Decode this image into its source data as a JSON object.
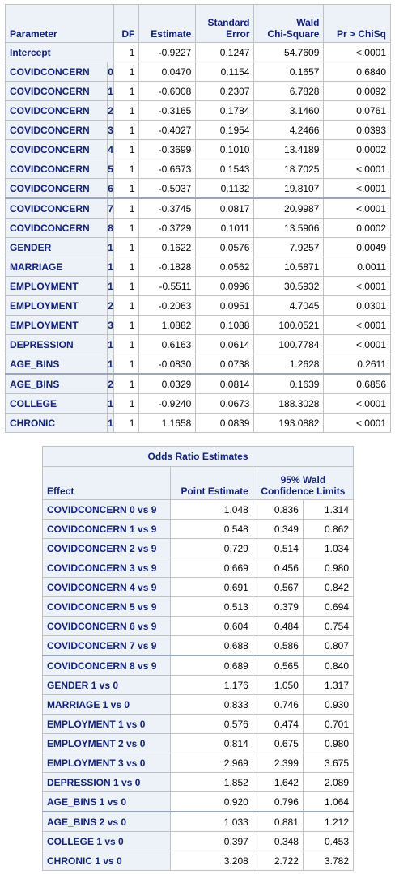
{
  "parameters": {
    "headers": {
      "parameter": "Parameter",
      "df": "DF",
      "estimate": "Estimate",
      "std_err_1": "Standard",
      "std_err_2": "Error",
      "chisq_1": "Wald",
      "chisq_2": "Chi-Square",
      "p": "Pr > ChiSq"
    },
    "rows": [
      {
        "name": "Intercept",
        "level": "",
        "df": "1",
        "estimate": "-0.9227",
        "se": "0.1247",
        "chisq": "54.7609",
        "p": "<.0001"
      },
      {
        "name": "COVIDCONCERN",
        "level": "0",
        "df": "1",
        "estimate": "0.0470",
        "se": "0.1154",
        "chisq": "0.1657",
        "p": "0.6840"
      },
      {
        "name": "COVIDCONCERN",
        "level": "1",
        "df": "1",
        "estimate": "-0.6008",
        "se": "0.2307",
        "chisq": "6.7828",
        "p": "0.0092"
      },
      {
        "name": "COVIDCONCERN",
        "level": "2",
        "df": "1",
        "estimate": "-0.3165",
        "se": "0.1784",
        "chisq": "3.1460",
        "p": "0.0761"
      },
      {
        "name": "COVIDCONCERN",
        "level": "3",
        "df": "1",
        "estimate": "-0.4027",
        "se": "0.1954",
        "chisq": "4.2466",
        "p": "0.0393"
      },
      {
        "name": "COVIDCONCERN",
        "level": "4",
        "df": "1",
        "estimate": "-0.3699",
        "se": "0.1010",
        "chisq": "13.4189",
        "p": "0.0002"
      },
      {
        "name": "COVIDCONCERN",
        "level": "5",
        "df": "1",
        "estimate": "-0.6673",
        "se": "0.1543",
        "chisq": "18.7025",
        "p": "<.0001"
      },
      {
        "name": "COVIDCONCERN",
        "level": "6",
        "df": "1",
        "estimate": "-0.5037",
        "se": "0.1132",
        "chisq": "19.8107",
        "p": "<.0001"
      },
      {
        "name": "COVIDCONCERN",
        "level": "7",
        "df": "1",
        "estimate": "-0.3745",
        "se": "0.0817",
        "chisq": "20.9987",
        "p": "<.0001"
      },
      {
        "name": "COVIDCONCERN",
        "level": "8",
        "df": "1",
        "estimate": "-0.3729",
        "se": "0.1011",
        "chisq": "13.5906",
        "p": "0.0002"
      },
      {
        "name": "GENDER",
        "level": "1",
        "df": "1",
        "estimate": "0.1622",
        "se": "0.0576",
        "chisq": "7.9257",
        "p": "0.0049"
      },
      {
        "name": "MARRIAGE",
        "level": "1",
        "df": "1",
        "estimate": "-0.1828",
        "se": "0.0562",
        "chisq": "10.5871",
        "p": "0.0011"
      },
      {
        "name": "EMPLOYMENT",
        "level": "1",
        "df": "1",
        "estimate": "-0.5511",
        "se": "0.0996",
        "chisq": "30.5932",
        "p": "<.0001"
      },
      {
        "name": "EMPLOYMENT",
        "level": "2",
        "df": "1",
        "estimate": "-0.2063",
        "se": "0.0951",
        "chisq": "4.7045",
        "p": "0.0301"
      },
      {
        "name": "EMPLOYMENT",
        "level": "3",
        "df": "1",
        "estimate": "1.0882",
        "se": "0.1088",
        "chisq": "100.0521",
        "p": "<.0001"
      },
      {
        "name": "DEPRESSION",
        "level": "1",
        "df": "1",
        "estimate": "0.6163",
        "se": "0.0614",
        "chisq": "100.7784",
        "p": "<.0001"
      },
      {
        "name": "AGE_BINS",
        "level": "1",
        "df": "1",
        "estimate": "-0.0830",
        "se": "0.0738",
        "chisq": "1.2628",
        "p": "0.2611"
      },
      {
        "name": "AGE_BINS",
        "level": "2",
        "df": "1",
        "estimate": "0.0329",
        "se": "0.0814",
        "chisq": "0.1639",
        "p": "0.6856"
      },
      {
        "name": "COLLEGE",
        "level": "1",
        "df": "1",
        "estimate": "-0.9240",
        "se": "0.0673",
        "chisq": "188.3028",
        "p": "<.0001"
      },
      {
        "name": "CHRONIC",
        "level": "1",
        "df": "1",
        "estimate": "1.1658",
        "se": "0.0839",
        "chisq": "193.0882",
        "p": "<.0001"
      }
    ]
  },
  "odds": {
    "title": "Odds Ratio Estimates",
    "headers": {
      "effect": "Effect",
      "point": "Point Estimate",
      "ci_1": "95% Wald",
      "ci_2": "Confidence Limits"
    },
    "rows": [
      {
        "effect": "COVIDCONCERN 0 vs 9",
        "point": "1.048",
        "lower": "0.836",
        "upper": "1.314"
      },
      {
        "effect": "COVIDCONCERN 1 vs 9",
        "point": "0.548",
        "lower": "0.349",
        "upper": "0.862"
      },
      {
        "effect": "COVIDCONCERN 2 vs 9",
        "point": "0.729",
        "lower": "0.514",
        "upper": "1.034"
      },
      {
        "effect": "COVIDCONCERN 3 vs 9",
        "point": "0.669",
        "lower": "0.456",
        "upper": "0.980"
      },
      {
        "effect": "COVIDCONCERN 4 vs 9",
        "point": "0.691",
        "lower": "0.567",
        "upper": "0.842"
      },
      {
        "effect": "COVIDCONCERN 5 vs 9",
        "point": "0.513",
        "lower": "0.379",
        "upper": "0.694"
      },
      {
        "effect": "COVIDCONCERN 6 vs 9",
        "point": "0.604",
        "lower": "0.484",
        "upper": "0.754"
      },
      {
        "effect": "COVIDCONCERN 7 vs 9",
        "point": "0.688",
        "lower": "0.586",
        "upper": "0.807"
      },
      {
        "effect": "COVIDCONCERN 8 vs 9",
        "point": "0.689",
        "lower": "0.565",
        "upper": "0.840"
      },
      {
        "effect": "GENDER 1 vs 0",
        "point": "1.176",
        "lower": "1.050",
        "upper": "1.317"
      },
      {
        "effect": "MARRIAGE 1 vs 0",
        "point": "0.833",
        "lower": "0.746",
        "upper": "0.930"
      },
      {
        "effect": "EMPLOYMENT 1 vs 0",
        "point": "0.576",
        "lower": "0.474",
        "upper": "0.701"
      },
      {
        "effect": "EMPLOYMENT 2 vs 0",
        "point": "0.814",
        "lower": "0.675",
        "upper": "0.980"
      },
      {
        "effect": "EMPLOYMENT 3 vs 0",
        "point": "2.969",
        "lower": "2.399",
        "upper": "3.675"
      },
      {
        "effect": "DEPRESSION 1 vs 0",
        "point": "1.852",
        "lower": "1.642",
        "upper": "2.089"
      },
      {
        "effect": "AGE_BINS 1 vs 0",
        "point": "0.920",
        "lower": "0.796",
        "upper": "1.064"
      },
      {
        "effect": "AGE_BINS 2 vs 0",
        "point": "1.033",
        "lower": "0.881",
        "upper": "1.212"
      },
      {
        "effect": "COLLEGE 1 vs 0",
        "point": "0.397",
        "lower": "0.348",
        "upper": "0.453"
      },
      {
        "effect": "CHRONIC 1 vs 0",
        "point": "3.208",
        "lower": "2.722",
        "upper": "3.782"
      }
    ]
  }
}
